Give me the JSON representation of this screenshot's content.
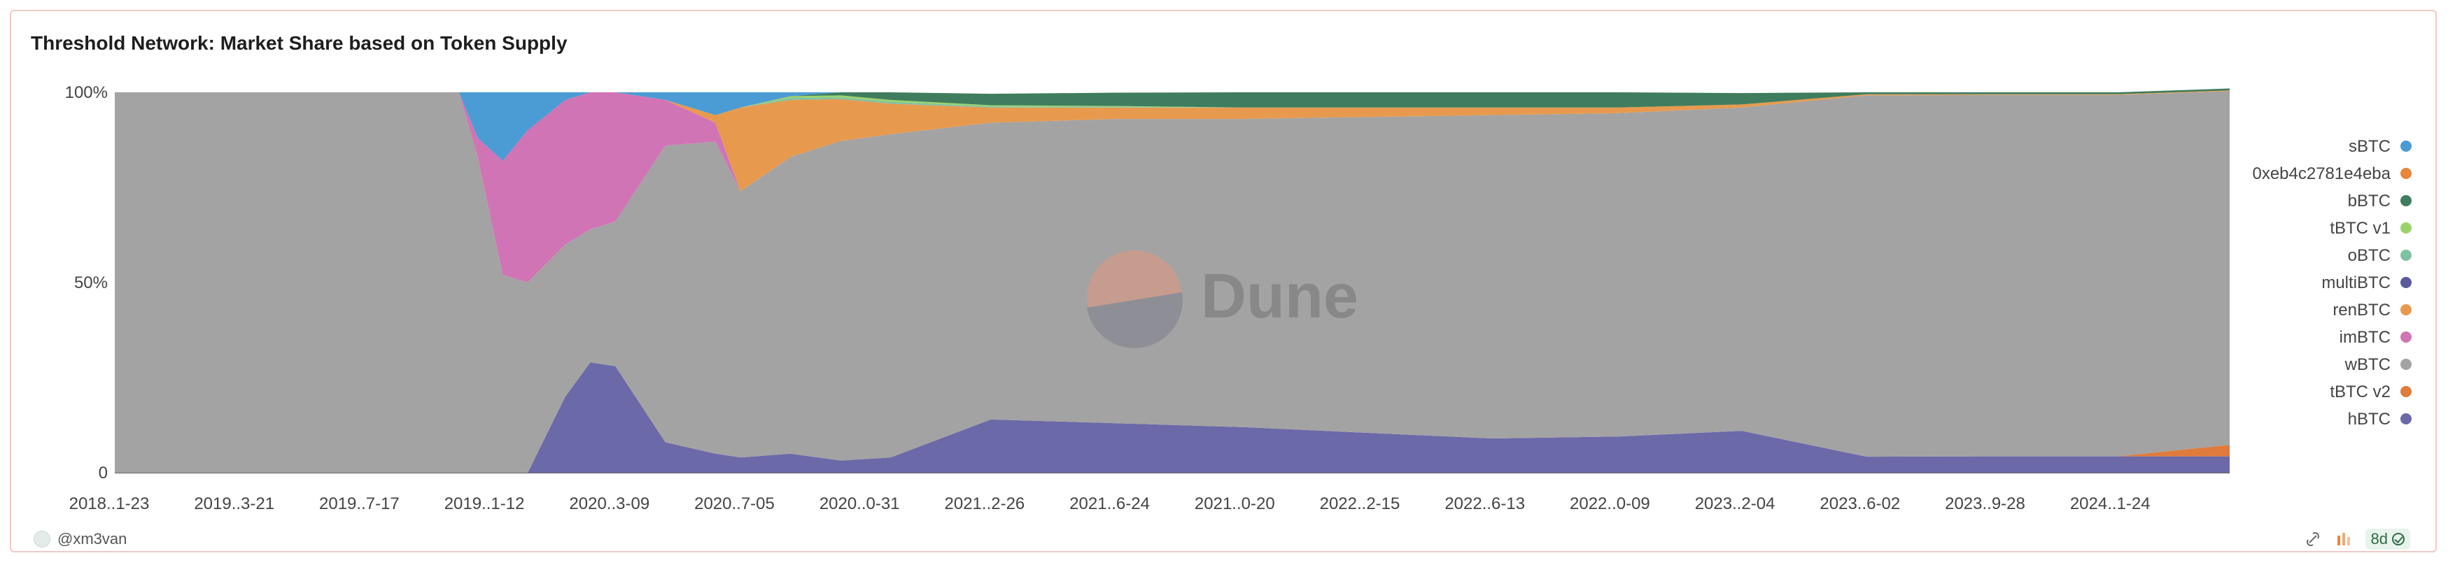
{
  "title": "Threshold Network: Market Share based on Token Supply",
  "author": "@xm3van",
  "refresh_badge": "8d",
  "watermark": "Dune",
  "chart_data": {
    "type": "area",
    "stacked": "percent",
    "ylim": [
      0,
      100
    ],
    "ytick_labels": [
      "0",
      "50%",
      "100%"
    ],
    "x_tick_labels": [
      "2018..1-23",
      "2019..3-21",
      "2019..7-17",
      "2019..1-12",
      "2020..3-09",
      "2020..7-05",
      "2020..0-31",
      "2021..2-26",
      "2021..6-24",
      "2021..0-20",
      "2022..2-15",
      "2022..6-13",
      "2022..0-09",
      "2023..2-04",
      "2023..6-02",
      "2023..9-28",
      "2024..1-24"
    ],
    "legend_position": "right",
    "x": [
      0,
      2.6,
      2.75,
      2.9,
      3.1,
      3.3,
      3.6,
      3.8,
      4.0,
      4.4,
      4.8,
      5.0,
      5.4,
      5.8,
      6.2,
      7.0,
      8.0,
      9.0,
      10.0,
      11.0,
      12.0,
      13.0,
      14.0,
      15.0,
      16.0,
      16.9
    ],
    "series": [
      {
        "name": "sBTC",
        "color": "#4b9bd4",
        "values": [
          0,
          0,
          0,
          12,
          18,
          10,
          2,
          0,
          0,
          2,
          6,
          4,
          1,
          0,
          0,
          0,
          0,
          0,
          0,
          0,
          0,
          0,
          0,
          0,
          0,
          0
        ]
      },
      {
        "name": "0xeb4c2781e4eba",
        "color": "#e8863a",
        "values": [
          0,
          0,
          0,
          0,
          0,
          0,
          0,
          0,
          0,
          0,
          0,
          0,
          0,
          0,
          0,
          0,
          0,
          0,
          0,
          0,
          0,
          0,
          0,
          0,
          0,
          0
        ]
      },
      {
        "name": "bBTC",
        "color": "#3f7d5e",
        "values": [
          0,
          0,
          0,
          0,
          0,
          0,
          0,
          0,
          0,
          0,
          0,
          0,
          0,
          0.8,
          2,
          3,
          3.5,
          4,
          4,
          4,
          4,
          3,
          0.5,
          0.5,
          0.5,
          0.5
        ]
      },
      {
        "name": "tBTC v1",
        "color": "#9bd26a",
        "values": [
          0,
          0,
          0,
          0,
          0,
          0,
          0,
          0,
          0,
          0,
          0,
          0,
          0.5,
          0.5,
          0.5,
          0.3,
          0.2,
          0,
          0,
          0,
          0,
          0,
          0,
          0,
          0,
          0
        ]
      },
      {
        "name": "oBTC",
        "color": "#7cc3a3",
        "values": [
          0,
          0,
          0,
          0,
          0,
          0,
          0,
          0,
          0,
          0,
          0,
          0,
          0.5,
          0.5,
          0.5,
          0.3,
          0.2,
          0,
          0,
          0,
          0,
          0,
          0,
          0,
          0,
          0
        ]
      },
      {
        "name": "multiBTC",
        "color": "#5a5a9c",
        "values": [
          0,
          0,
          0,
          0,
          0,
          0,
          0,
          0,
          0,
          0,
          0,
          0,
          0,
          0,
          0,
          0,
          0,
          0,
          0,
          0,
          0,
          0,
          0,
          0,
          0,
          0
        ]
      },
      {
        "name": "renBTC",
        "color": "#e79a4e",
        "values": [
          0,
          0,
          0,
          0,
          0,
          0,
          0,
          0,
          0,
          0,
          2,
          22,
          15,
          11,
          8,
          4,
          3,
          3,
          2.5,
          2,
          1.5,
          0.8,
          0.3,
          0.2,
          0.2,
          0.2
        ]
      },
      {
        "name": "imBTC",
        "color": "#d174b5",
        "values": [
          0,
          0,
          0,
          5,
          30,
          40,
          38,
          36,
          34,
          12,
          5,
          0,
          0,
          0,
          0,
          0,
          0,
          0,
          0,
          0,
          0,
          0,
          0,
          0,
          0,
          0
        ]
      },
      {
        "name": "wBTC",
        "color": "#a3a3a3",
        "values": [
          100,
          100,
          100,
          83,
          52,
          50,
          40,
          35,
          38,
          78,
          82,
          70,
          78,
          84,
          85,
          78,
          80,
          81,
          83,
          85,
          85,
          85,
          95,
          95,
          95,
          93
        ]
      },
      {
        "name": "tBTC v2",
        "color": "#e07b3c",
        "values": [
          0,
          0,
          0,
          0,
          0,
          0,
          0,
          0,
          0,
          0,
          0,
          0,
          0,
          0,
          0,
          0,
          0,
          0,
          0,
          0,
          0,
          0,
          0,
          0,
          0,
          3
        ]
      },
      {
        "name": "hBTC",
        "color": "#6b69a8",
        "values": [
          0,
          0,
          0,
          0,
          0,
          0,
          20,
          29,
          28,
          8,
          5,
          4,
          5,
          3.2,
          4,
          14,
          13,
          12,
          10.5,
          9,
          9.5,
          11,
          4.2,
          4.3,
          4.3,
          4.3
        ]
      }
    ]
  }
}
